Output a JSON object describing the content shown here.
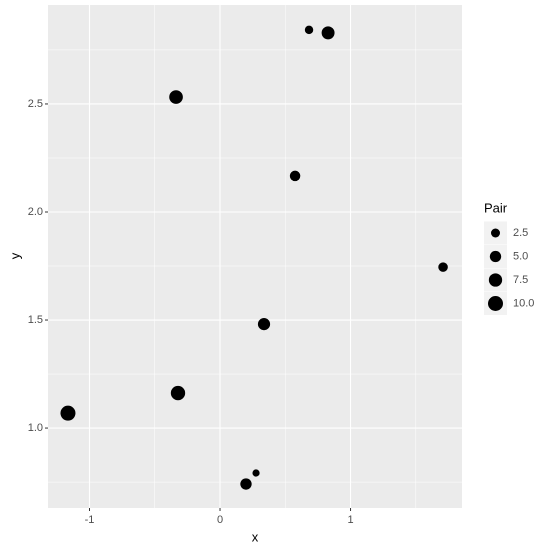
{
  "chart_data": {
    "type": "scatter",
    "x_label": "x",
    "y_label": "y",
    "x": [
      0.682,
      0.828,
      -0.337,
      0.575,
      1.709,
      0.337,
      -0.322,
      -1.165,
      0.276,
      0.199
    ],
    "series": [
      {
        "name": "Pair",
        "color": "#000000",
        "values": [
          2.843,
          2.829,
          2.532,
          2.167,
          1.745,
          1.481,
          1.162,
          1.069,
          0.792,
          0.741
        ],
        "sizes": [
          2,
          7,
          8,
          4,
          3,
          6,
          9,
          10,
          1,
          5
        ]
      }
    ],
    "xlim": [
      -1.318,
      1.854
    ],
    "ylim": [
      0.63,
      2.958
    ],
    "xticks": [
      -1,
      0,
      1
    ],
    "yticks": [
      {
        "value": 1,
        "label": "1.0"
      },
      {
        "value": 1.5,
        "label": "1.5"
      },
      {
        "value": 2,
        "label": "2.0"
      },
      {
        "value": 2.5,
        "label": "2.5"
      }
    ],
    "grid": true,
    "legend": {
      "title": "Pair",
      "position": "right",
      "entries": [
        {
          "value": 2.5,
          "label": "2.5"
        },
        {
          "value": 5,
          "label": "5.0"
        },
        {
          "value": 7.5,
          "label": "7.5"
        },
        {
          "value": 10,
          "label": "10.0"
        }
      ]
    }
  }
}
